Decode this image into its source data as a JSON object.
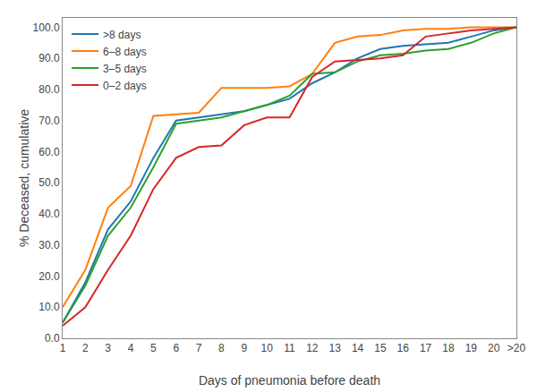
{
  "chart_data": {
    "type": "line",
    "xlabel": "Days of pneumonia before death",
    "ylabel": "% Deceased, cumulative",
    "categories": [
      "1",
      "2",
      "3",
      "4",
      "5",
      "6",
      "7",
      "8",
      "9",
      "10",
      "11",
      "12",
      "13",
      "14",
      "15",
      "16",
      "17",
      "18",
      "19",
      "20",
      ">20"
    ],
    "series": [
      {
        "name": ">8 days",
        "values": [
          5.0,
          18.0,
          35.0,
          44.0,
          58.0,
          70.0,
          71.0,
          72.0,
          73.0,
          75.0,
          77.0,
          82.0,
          85.5,
          90.0,
          93.0,
          94.0,
          94.5,
          95.0,
          97.0,
          99.0,
          100.0
        ]
      },
      {
        "name": "6–8 days",
        "values": [
          10.0,
          22.0,
          42.0,
          49.0,
          71.5,
          72.0,
          72.5,
          80.5,
          80.5,
          80.5,
          81.0,
          85.0,
          95.0,
          97.0,
          97.5,
          99.0,
          99.5,
          99.5,
          100.0,
          100.0,
          100.0
        ]
      },
      {
        "name": "3–5 days",
        "values": [
          5.0,
          17.0,
          33.0,
          42.0,
          55.0,
          69.0,
          70.0,
          71.0,
          73.0,
          75.0,
          78.0,
          85.0,
          85.5,
          89.0,
          91.0,
          91.5,
          92.5,
          93.0,
          95.0,
          98.0,
          100.0
        ]
      },
      {
        "name": "0–2 days",
        "values": [
          4.0,
          10.0,
          22.0,
          33.0,
          48.0,
          58.0,
          61.5,
          62.0,
          68.5,
          71.0,
          71.0,
          84.0,
          89.0,
          89.5,
          90.0,
          91.0,
          97.0,
          98.0,
          99.0,
          99.5,
          100.0
        ]
      }
    ],
    "ylim": [
      0.0,
      103.0
    ],
    "yticks": [
      {
        "value": 0,
        "label": "0.0"
      },
      {
        "value": 10,
        "label": "10.0"
      },
      {
        "value": 20,
        "label": "20.0"
      },
      {
        "value": 30,
        "label": "30.0"
      },
      {
        "value": 40,
        "label": "40.0"
      },
      {
        "value": 50,
        "label": "50.0"
      },
      {
        "value": 60,
        "label": "60.0"
      },
      {
        "value": 70,
        "label": "70.0"
      },
      {
        "value": 80,
        "label": "80.0"
      },
      {
        "value": 90,
        "label": "90.0"
      },
      {
        "value": 100,
        "label": "100.0"
      }
    ],
    "grid": false,
    "legend": "upper left"
  }
}
